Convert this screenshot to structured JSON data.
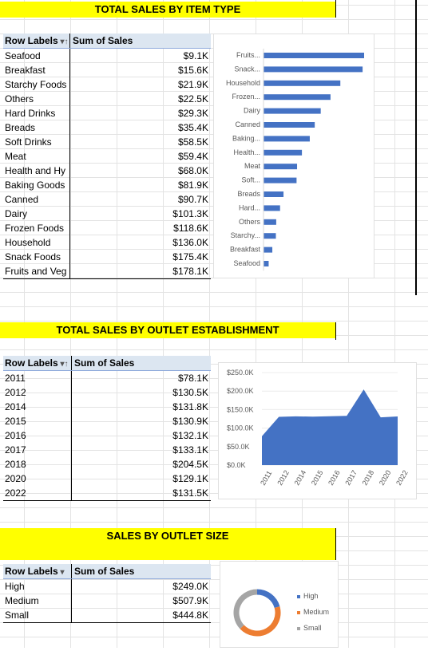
{
  "section1": {
    "title": "TOTAL SALES BY ITEM TYPE",
    "header": {
      "row_labels": "Row Labels",
      "sort_icon": "filter-sort-icon",
      "sum_label": "Sum of Sales"
    },
    "rows": [
      {
        "label": "Seafood",
        "value": "$9.1K"
      },
      {
        "label": "Breakfast",
        "value": "$15.6K"
      },
      {
        "label": "Starchy Foods",
        "value": "$21.9K"
      },
      {
        "label": "Others",
        "value": "$22.5K"
      },
      {
        "label": "Hard Drinks",
        "value": "$29.3K"
      },
      {
        "label": "Breads",
        "value": "$35.4K"
      },
      {
        "label": "Soft Drinks",
        "value": "$58.5K"
      },
      {
        "label": "Meat",
        "value": "$59.4K"
      },
      {
        "label": "Health and Hy",
        "value": "$68.0K"
      },
      {
        "label": "Baking Goods",
        "value": "$81.9K"
      },
      {
        "label": "Canned",
        "value": "$90.7K"
      },
      {
        "label": "Dairy",
        "value": "$101.3K"
      },
      {
        "label": "Frozen Foods",
        "value": "$118.6K"
      },
      {
        "label": "Household",
        "value": "$136.0K"
      },
      {
        "label": "Snack Foods",
        "value": "$175.4K"
      },
      {
        "label": "Fruits and Veg",
        "value": "$178.1K"
      }
    ]
  },
  "section2": {
    "title": "TOTAL SALES BY OUTLET ESTABLISHMENT",
    "header": {
      "row_labels": "Row Labels",
      "sort_icon": "filter-sort-icon",
      "sum_label": "Sum of Sales"
    },
    "rows": [
      {
        "label": "2011",
        "value": "$78.1K"
      },
      {
        "label": "2012",
        "value": "$130.5K"
      },
      {
        "label": "2014",
        "value": "$131.8K"
      },
      {
        "label": "2015",
        "value": "$130.9K"
      },
      {
        "label": "2016",
        "value": "$132.1K"
      },
      {
        "label": "2017",
        "value": "$133.1K"
      },
      {
        "label": "2018",
        "value": "$204.5K"
      },
      {
        "label": "2020",
        "value": "$129.1K"
      },
      {
        "label": "2022",
        "value": "$131.5K"
      }
    ]
  },
  "section3": {
    "title": "SALES BY OUTLET SIZE",
    "header": {
      "row_labels": "Row Labels",
      "sort_icon": "filter-dropdown-icon",
      "sum_label": "Sum of Sales"
    },
    "rows": [
      {
        "label": "High",
        "value": "$249.0K"
      },
      {
        "label": "Medium",
        "value": "$507.9K"
      },
      {
        "label": "Small",
        "value": "$444.8K"
      }
    ]
  },
  "colors": {
    "banner": "#ffff00",
    "header_bg": "#dce6f1",
    "blue": "#4472c4",
    "orange": "#ed7d31",
    "gray": "#a5a5a5"
  },
  "chart_data": [
    {
      "type": "bar",
      "orientation": "horizontal",
      "categories": [
        "Fruits...",
        "Snack...",
        "Household",
        "Frozen...",
        "Dairy",
        "Canned",
        "Baking...",
        "Health...",
        "Meat",
        "Soft...",
        "Breads",
        "Hard...",
        "Others",
        "Starchy...",
        "Breakfast",
        "Seafood"
      ],
      "values": [
        178.1,
        175.4,
        136.0,
        118.6,
        101.3,
        90.7,
        81.9,
        68.0,
        59.4,
        58.5,
        35.4,
        29.3,
        22.5,
        21.9,
        15.6,
        9.1
      ],
      "title": "",
      "xlabel": "",
      "ylabel": ""
    },
    {
      "type": "area",
      "x": [
        "2011",
        "2012",
        "2014",
        "2015",
        "2016",
        "2017",
        "2018",
        "2020",
        "2022"
      ],
      "values": [
        78.1,
        130.5,
        131.8,
        130.9,
        132.1,
        133.1,
        204.5,
        129.1,
        131.5
      ],
      "yticks": [
        "$0.0K",
        "$50.0K",
        "$100.0K",
        "$150.0K",
        "$200.0K",
        "$250.0K"
      ],
      "ylim": [
        0,
        250
      ],
      "title": "",
      "xlabel": "",
      "ylabel": ""
    },
    {
      "type": "pie",
      "donut": true,
      "categories": [
        "High",
        "Medium",
        "Small"
      ],
      "values": [
        249.0,
        507.9,
        444.8
      ],
      "legend": "right",
      "title": ""
    }
  ]
}
